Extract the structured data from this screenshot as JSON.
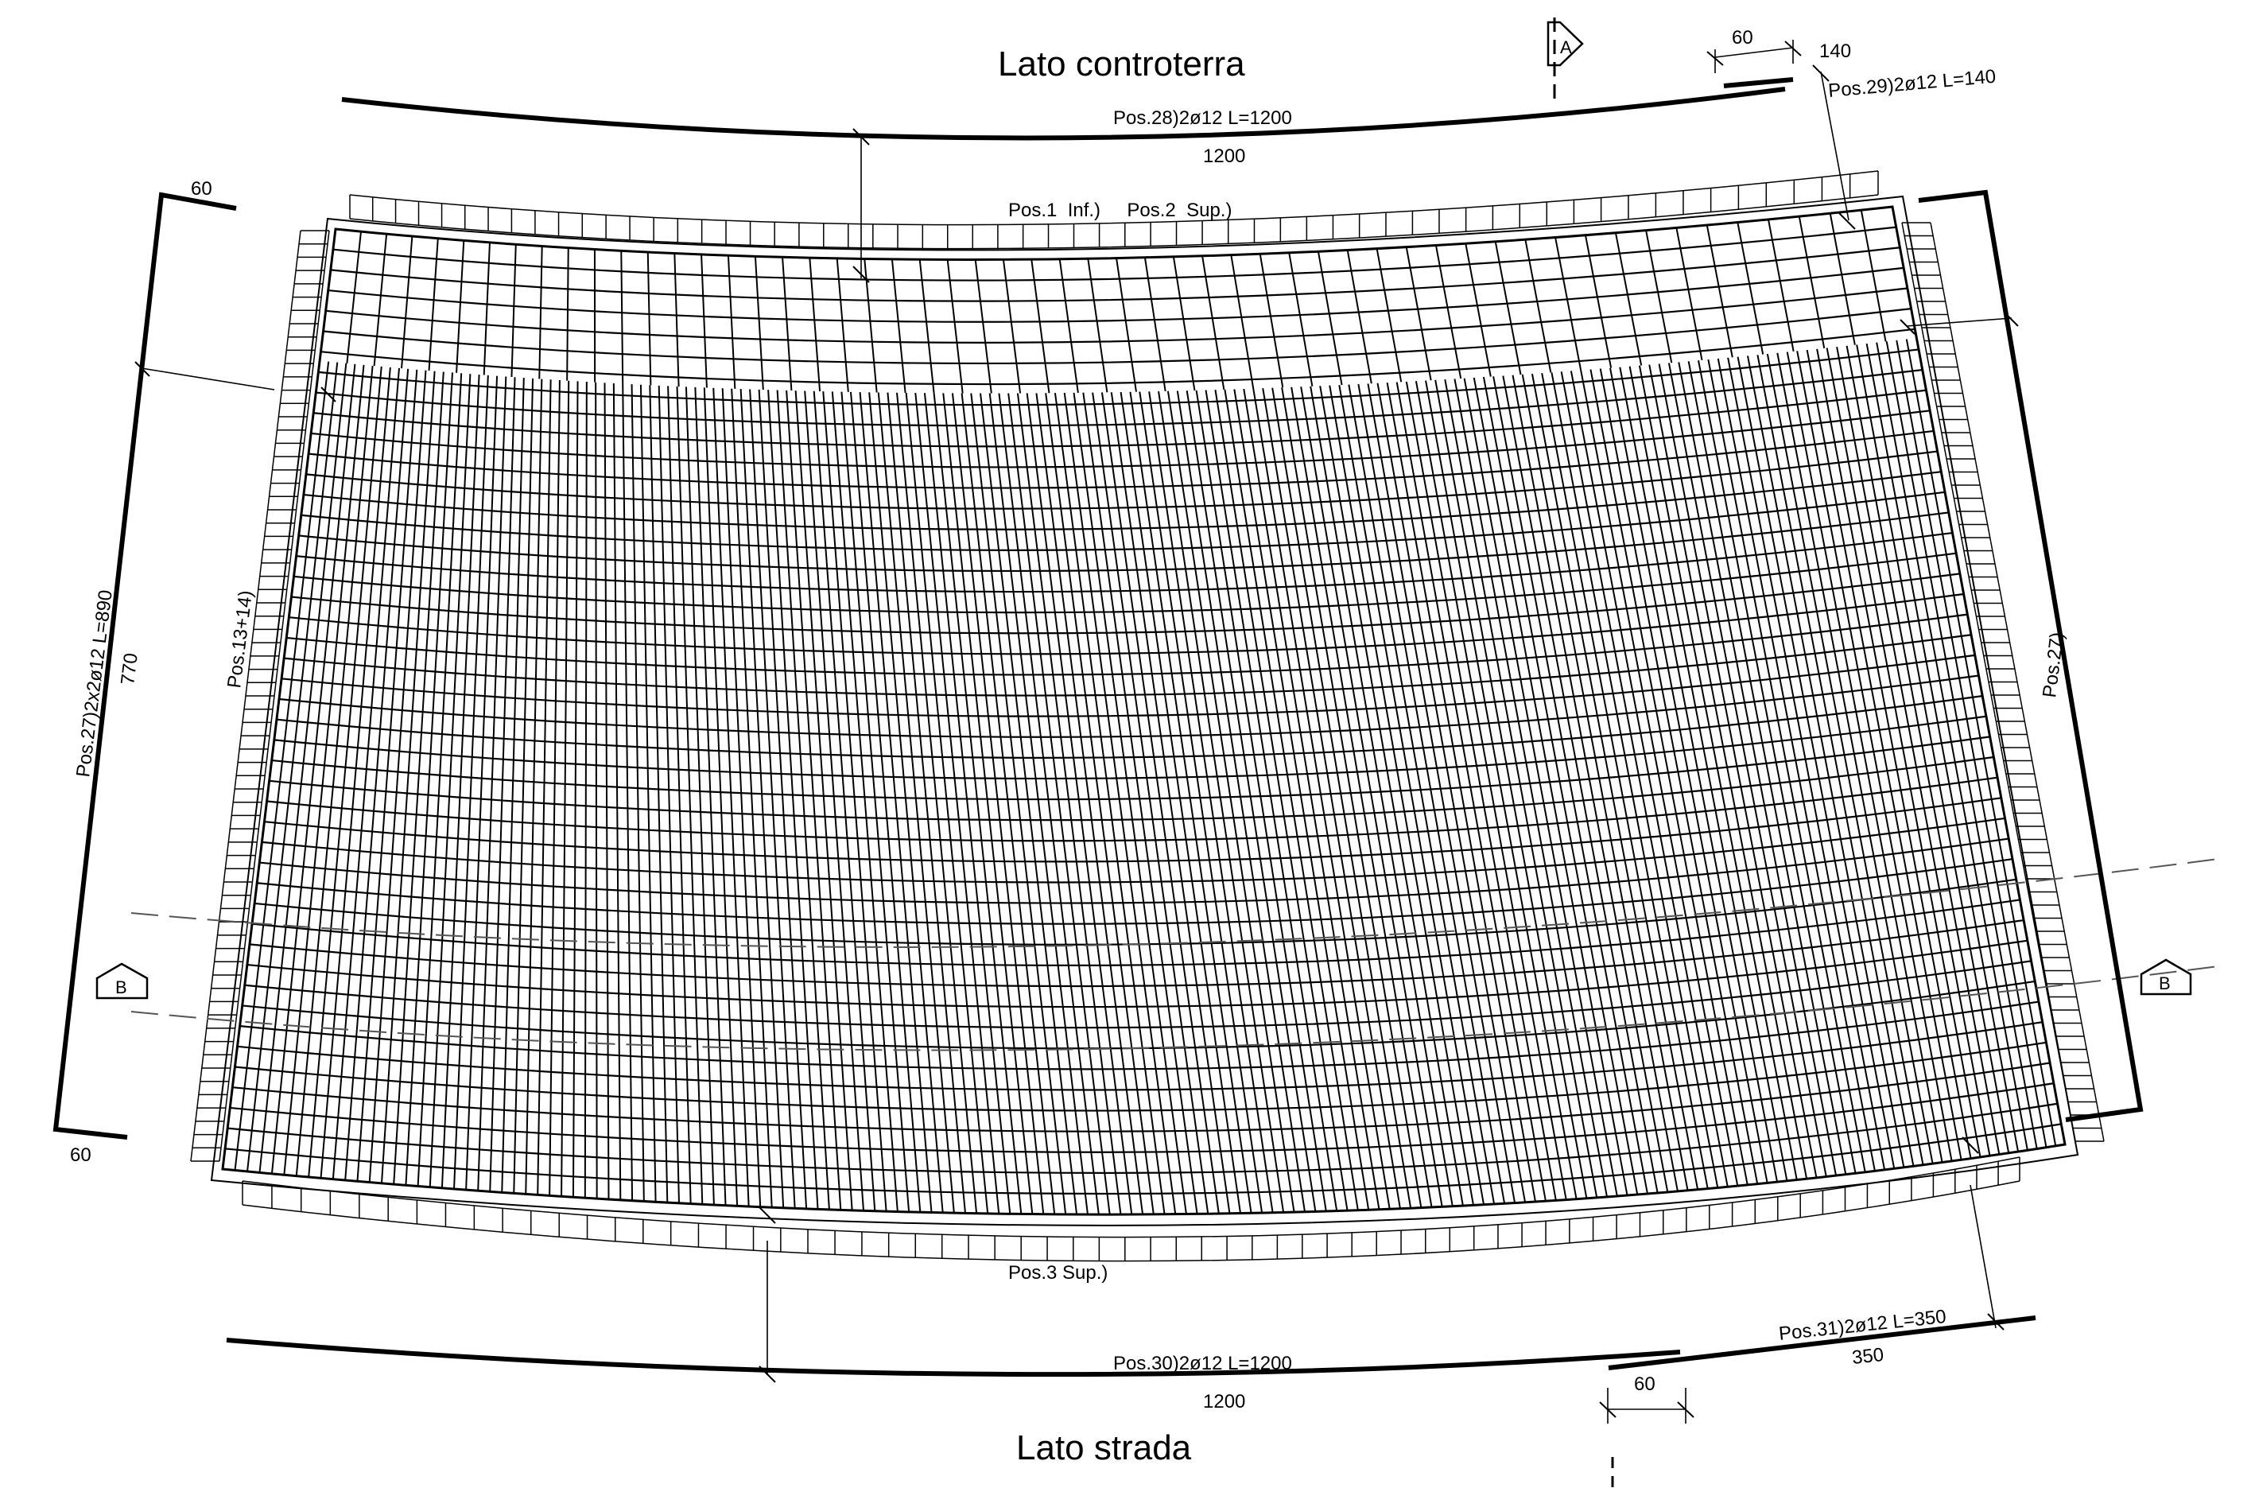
{
  "titles": {
    "top": "Lato controterra",
    "bottom": "Lato strada"
  },
  "labels": {
    "pos28": "Pos.28)2ø12  L=1200",
    "dim_top": "1200",
    "pos29": "Pos.29)2ø12  L=140",
    "dim_140": "140",
    "dim_60_top": "60",
    "pos1_2": "Pos.1  Inf.)     Pos.2  Sup.)",
    "dim_60_left_top": "60",
    "dim_60_left_bottom": "60",
    "pos27_left": "Pos.27)2x2ø12  L=890",
    "dim_770": "770",
    "pos13_14": "Pos.13+14)",
    "pos27_right": "Pos.27)",
    "pos3": "Pos.3  Sup.)",
    "pos30": "Pos.30)2ø12  L=1200",
    "dim_bottom": "1200",
    "pos31": "Pos.31)2ø12  L=350",
    "dim_350": "350",
    "dim_60_bottom": "60"
  },
  "section_markers": {
    "a": "A",
    "b_left": "B",
    "b_right": "B"
  },
  "colors": {
    "line": "#000000",
    "dashed": "#555555"
  }
}
